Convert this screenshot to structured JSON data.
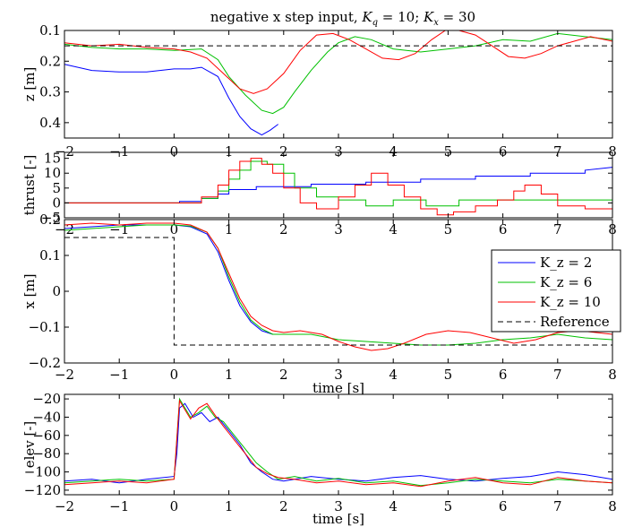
{
  "figure": {
    "title": "negative x step input, K_q = 10; K_x = 30"
  },
  "legend": {
    "entries": [
      {
        "label": "K_z = 2",
        "color": "#0000ff",
        "dash": false
      },
      {
        "label": "K_z = 6",
        "color": "#00c000",
        "dash": false
      },
      {
        "label": "K_z = 10",
        "color": "#ff0000",
        "dash": false
      },
      {
        "label": "Reference",
        "color": "#000000",
        "dash": true
      }
    ]
  },
  "chart_data": [
    {
      "type": "line",
      "id": "z",
      "title": "negative x step input, K_q = 10; K_x = 30",
      "ylabel": "z [m]",
      "xlabel": "",
      "xlim": [
        -2,
        8
      ],
      "ylim": [
        0.45,
        0.1
      ],
      "y_reversed": true,
      "xticks": [
        "−2",
        "−1",
        "0",
        "1",
        "2",
        "3",
        "4",
        "5",
        "6",
        "7",
        "8"
      ],
      "yticks": [
        "0.1",
        "0.2",
        "0.3",
        "0.4"
      ],
      "ytick_values": [
        0.1,
        0.2,
        0.3,
        0.4
      ],
      "series": [
        {
          "name": "K_z = 2",
          "color": "#0000ff",
          "x": [
            -2,
            -1.5,
            -1,
            -0.5,
            0,
            0.3,
            0.5,
            0.8,
            1.0,
            1.2,
            1.4,
            1.6,
            1.75,
            1.9
          ],
          "y": [
            0.21,
            0.23,
            0.235,
            0.235,
            0.225,
            0.225,
            0.22,
            0.25,
            0.32,
            0.38,
            0.42,
            0.44,
            0.425,
            0.405
          ]
        },
        {
          "name": "K_z = 6",
          "color": "#00c000",
          "x": [
            -2,
            -1.5,
            -1,
            -0.5,
            0,
            0.5,
            0.8,
            1.0,
            1.3,
            1.6,
            1.8,
            2.0,
            2.2,
            2.5,
            2.8,
            3.0,
            3.3,
            3.6,
            4.0,
            4.5,
            5.0,
            5.5,
            6.0,
            6.5,
            7.0,
            7.5,
            8.0
          ],
          "y": [
            0.145,
            0.155,
            0.16,
            0.16,
            0.165,
            0.16,
            0.195,
            0.25,
            0.31,
            0.36,
            0.37,
            0.35,
            0.3,
            0.23,
            0.17,
            0.14,
            0.12,
            0.13,
            0.16,
            0.17,
            0.16,
            0.15,
            0.13,
            0.135,
            0.11,
            0.12,
            0.13
          ]
        },
        {
          "name": "K_z = 10",
          "color": "#ff0000",
          "x": [
            -2,
            -1.5,
            -1,
            -0.5,
            0,
            0.3,
            0.6,
            0.9,
            1.2,
            1.45,
            1.7,
            2.0,
            2.3,
            2.6,
            2.9,
            3.2,
            3.5,
            3.8,
            4.1,
            4.4,
            4.7,
            4.95,
            5.2,
            5.5,
            5.8,
            6.1,
            6.4,
            6.7,
            7.0,
            7.3,
            7.6,
            8.0
          ],
          "y": [
            0.14,
            0.15,
            0.145,
            0.155,
            0.16,
            0.17,
            0.19,
            0.24,
            0.29,
            0.305,
            0.29,
            0.24,
            0.165,
            0.115,
            0.11,
            0.13,
            0.16,
            0.19,
            0.195,
            0.175,
            0.13,
            0.1,
            0.1,
            0.115,
            0.15,
            0.185,
            0.19,
            0.175,
            0.15,
            0.135,
            0.12,
            0.135
          ]
        },
        {
          "name": "Reference",
          "color": "#000000",
          "dash": true,
          "x": [
            -2,
            8
          ],
          "y": [
            0.15,
            0.15
          ]
        }
      ]
    },
    {
      "type": "line",
      "id": "thrust",
      "ylabel": "thrust [-]",
      "xlabel": "",
      "xlim": [
        -2,
        8
      ],
      "ylim": [
        -5,
        17
      ],
      "xticks": [
        "−2",
        "−1",
        "0",
        "1",
        "2",
        "3",
        "4",
        "5",
        "6",
        "7",
        "8"
      ],
      "yticks": [
        "15",
        "10",
        "5",
        "0",
        "−5"
      ],
      "ytick_values": [
        15,
        10,
        5,
        0,
        -5
      ],
      "series": [
        {
          "name": "K_z = 2",
          "color": "#0000ff",
          "x": [
            -2,
            0.1,
            0.1,
            0.5,
            0.5,
            0.8,
            0.8,
            1.0,
            1.0,
            1.5,
            1.5,
            2.5,
            2.5,
            3.5,
            3.5,
            4.5,
            4.5,
            5.5,
            5.5,
            6.5,
            6.5,
            7.5,
            7.5,
            8.0
          ],
          "y": [
            0,
            0,
            0.5,
            0.5,
            1.5,
            1.5,
            3,
            3,
            4.5,
            4.5,
            5.5,
            5.5,
            6.3,
            6.3,
            7,
            7,
            8,
            8,
            9,
            9,
            10,
            10,
            11,
            12
          ]
        },
        {
          "name": "K_z = 6",
          "color": "#00c000",
          "x": [
            -2,
            0.5,
            0.5,
            0.8,
            0.8,
            1.0,
            1.0,
            1.2,
            1.2,
            1.4,
            1.4,
            1.7,
            1.7,
            2.0,
            2.0,
            2.2,
            2.2,
            2.6,
            2.6,
            3.0,
            3.0,
            3.5,
            3.5,
            4.0,
            4.0,
            4.6,
            4.6,
            5.2,
            5.2,
            8.0
          ],
          "y": [
            0,
            0,
            1.5,
            1.5,
            4,
            4,
            8,
            8,
            11,
            11,
            14,
            14,
            13,
            13,
            10,
            10,
            5,
            5,
            2,
            2,
            1,
            1,
            -1,
            -1,
            1,
            1,
            -1,
            -1,
            1,
            1
          ]
        },
        {
          "name": "K_z = 10",
          "color": "#ff0000",
          "x": [
            -2,
            0.5,
            0.5,
            0.8,
            0.8,
            1.0,
            1.0,
            1.2,
            1.2,
            1.4,
            1.4,
            1.6,
            1.6,
            1.8,
            1.8,
            2.0,
            2.0,
            2.3,
            2.3,
            2.6,
            2.6,
            3.0,
            3.0,
            3.3,
            3.3,
            3.6,
            3.6,
            3.9,
            3.9,
            4.2,
            4.2,
            4.5,
            4.5,
            4.8,
            4.8,
            5.1,
            5.1,
            5.5,
            5.5,
            5.9,
            5.9,
            6.2,
            6.2,
            6.4,
            6.4,
            6.7,
            6.7,
            7.0,
            7.0,
            7.5,
            7.5,
            8.0
          ],
          "y": [
            0,
            0,
            2,
            2,
            6,
            6,
            11,
            11,
            14,
            14,
            15,
            15,
            13,
            13,
            10,
            10,
            5,
            5,
            0,
            0,
            -2,
            -2,
            2,
            2,
            6,
            6,
            10,
            10,
            6,
            6,
            2,
            2,
            -2,
            -2,
            -4,
            -4,
            -3,
            -3,
            -1,
            -1,
            1,
            1,
            4,
            4,
            6,
            6,
            3,
            3,
            -1,
            -1,
            -2,
            -2
          ]
        }
      ]
    },
    {
      "type": "line",
      "id": "x",
      "ylabel": "x [m]",
      "xlabel": "time [s]",
      "xlim": [
        -2,
        8
      ],
      "ylim": [
        -0.2,
        0.2
      ],
      "xticks": [
        "−2",
        "−1",
        "0",
        "1",
        "2",
        "3",
        "4",
        "5",
        "6",
        "7",
        "8"
      ],
      "yticks": [
        "0.2",
        "0.1",
        "0",
        "−0.1",
        "−0.2"
      ],
      "ytick_values": [
        0.2,
        0.1,
        0,
        -0.1,
        -0.2
      ],
      "series": [
        {
          "name": "K_z = 2",
          "color": "#0000ff",
          "x": [
            -2,
            -1.5,
            -1,
            -0.5,
            0,
            0.3,
            0.6,
            0.8,
            1.0,
            1.2,
            1.4,
            1.6,
            1.8
          ],
          "y": [
            0.175,
            0.18,
            0.185,
            0.185,
            0.185,
            0.18,
            0.16,
            0.11,
            0.03,
            -0.04,
            -0.085,
            -0.11,
            -0.12
          ]
        },
        {
          "name": "K_z = 6",
          "color": "#00c000",
          "x": [
            -2,
            -1.5,
            -1,
            -0.5,
            0,
            0.3,
            0.6,
            0.8,
            1.0,
            1.2,
            1.4,
            1.6,
            1.8,
            2.0,
            2.5,
            3.0,
            3.5,
            4.0,
            4.5,
            5.0,
            5.5,
            6.0,
            6.5,
            7.0,
            7.5,
            8.0
          ],
          "y": [
            0.17,
            0.175,
            0.18,
            0.185,
            0.185,
            0.182,
            0.165,
            0.12,
            0.04,
            -0.03,
            -0.08,
            -0.105,
            -0.12,
            -0.12,
            -0.12,
            -0.135,
            -0.14,
            -0.145,
            -0.15,
            -0.15,
            -0.145,
            -0.135,
            -0.13,
            -0.12,
            -0.13,
            -0.135
          ]
        },
        {
          "name": "K_z = 10",
          "color": "#ff0000",
          "x": [
            -2,
            -1.5,
            -1,
            -0.5,
            0,
            0.3,
            0.6,
            0.8,
            1.0,
            1.2,
            1.4,
            1.6,
            1.8,
            2.0,
            2.3,
            2.7,
            3.0,
            3.3,
            3.6,
            3.9,
            4.2,
            4.6,
            5.0,
            5.4,
            5.8,
            6.2,
            6.6,
            7.0,
            7.4,
            8.0
          ],
          "y": [
            0.185,
            0.19,
            0.185,
            0.19,
            0.19,
            0.185,
            0.165,
            0.12,
            0.05,
            -0.02,
            -0.07,
            -0.095,
            -0.11,
            -0.115,
            -0.11,
            -0.12,
            -0.14,
            -0.155,
            -0.165,
            -0.16,
            -0.145,
            -0.12,
            -0.11,
            -0.115,
            -0.13,
            -0.145,
            -0.135,
            -0.115,
            -0.11,
            -0.12
          ]
        },
        {
          "name": "Reference",
          "color": "#000000",
          "dash": true,
          "x": [
            -2,
            0,
            0,
            8
          ],
          "y": [
            0.15,
            0.15,
            -0.15,
            -0.15
          ]
        }
      ]
    },
    {
      "type": "line",
      "id": "elev",
      "ylabel": "elev [-]",
      "xlabel": "time [s]",
      "xlim": [
        -2,
        8
      ],
      "ylim": [
        -125,
        -15
      ],
      "xticks": [
        "−2",
        "−1",
        "0",
        "1",
        "2",
        "3",
        "4",
        "5",
        "6",
        "7",
        "8"
      ],
      "yticks": [
        "−20",
        "−40",
        "−60",
        "−80",
        "−100",
        "−120"
      ],
      "ytick_values": [
        -20,
        -40,
        -60,
        -80,
        -100,
        -120
      ],
      "series": [
        {
          "name": "K_z = 2",
          "color": "#0000ff",
          "x": [
            -2,
            -1.5,
            -1,
            -0.5,
            0,
            0.05,
            0.1,
            0.2,
            0.35,
            0.5,
            0.65,
            0.8,
            1.0,
            1.2,
            1.4,
            1.6,
            1.8,
            2.0,
            2.5,
            3.0,
            3.5,
            4.0,
            4.5,
            5.0,
            5.5,
            6.0,
            6.5,
            7.0,
            7.5,
            8.0
          ],
          "y": [
            -110,
            -108,
            -112,
            -108,
            -105,
            -80,
            -30,
            -25,
            -40,
            -35,
            -45,
            -40,
            -55,
            -70,
            -90,
            -100,
            -108,
            -110,
            -105,
            -108,
            -110,
            -106,
            -104,
            -108,
            -110,
            -107,
            -105,
            -100,
            -103,
            -108
          ]
        },
        {
          "name": "K_z = 6",
          "color": "#00c000",
          "x": [
            -2,
            -1.5,
            -1,
            -0.5,
            0,
            0.1,
            0.2,
            0.3,
            0.45,
            0.6,
            0.75,
            0.9,
            1.1,
            1.3,
            1.5,
            1.7,
            1.9,
            2.2,
            2.6,
            3.0,
            3.5,
            4.0,
            4.5,
            5.0,
            5.5,
            6.0,
            6.5,
            7.0,
            7.5,
            8.0
          ],
          "y": [
            -112,
            -110,
            -108,
            -110,
            -108,
            -20,
            -30,
            -40,
            -35,
            -28,
            -40,
            -45,
            -60,
            -75,
            -90,
            -100,
            -108,
            -105,
            -110,
            -107,
            -112,
            -110,
            -115,
            -112,
            -108,
            -110,
            -112,
            -108,
            -110,
            -112
          ]
        },
        {
          "name": "K_z = 10",
          "color": "#ff0000",
          "x": [
            -2,
            -1.5,
            -1,
            -0.5,
            0,
            0.1,
            0.2,
            0.3,
            0.45,
            0.6,
            0.75,
            0.9,
            1.1,
            1.3,
            1.5,
            1.7,
            1.9,
            2.2,
            2.6,
            3.0,
            3.5,
            4.0,
            4.5,
            5.0,
            5.5,
            6.0,
            6.5,
            7.0,
            7.5,
            8.0
          ],
          "y": [
            -114,
            -112,
            -110,
            -112,
            -108,
            -22,
            -32,
            -42,
            -30,
            -25,
            -38,
            -50,
            -65,
            -80,
            -95,
            -102,
            -106,
            -108,
            -112,
            -110,
            -114,
            -112,
            -116,
            -110,
            -106,
            -112,
            -114,
            -106,
            -110,
            -112
          ]
        }
      ]
    }
  ]
}
